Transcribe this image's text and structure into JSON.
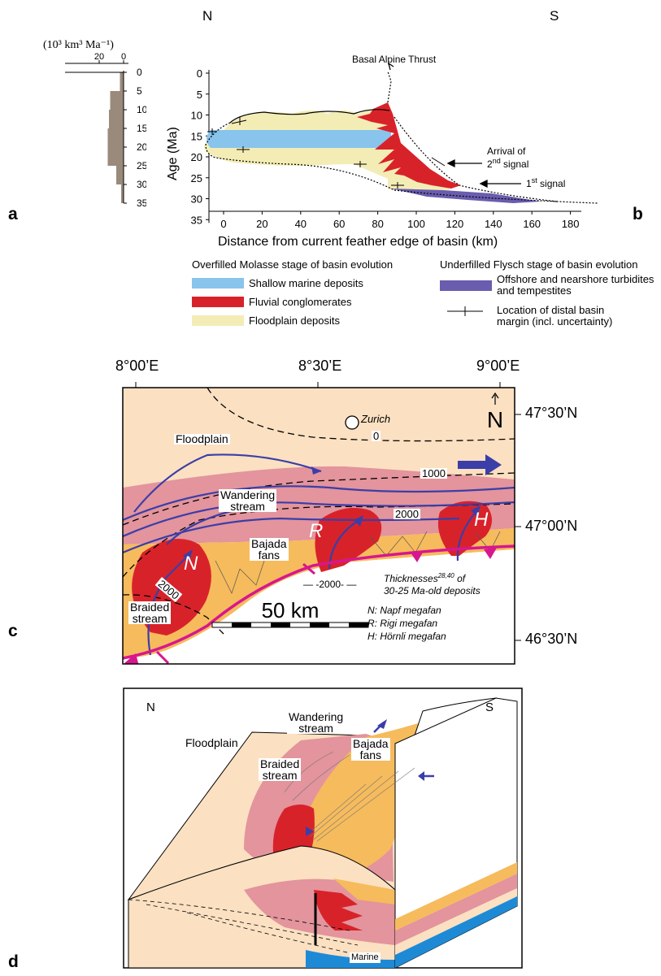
{
  "panel_letters": {
    "a": "a",
    "b": "b",
    "c": "c",
    "d": "d"
  },
  "colors": {
    "shallow_marine": "#88c4ec",
    "fluvial": "#d8222a",
    "floodplain": "#f3ecb5",
    "flysch": "#6a5cae",
    "flux_bar": "#9a8a7c",
    "map_floodplain": "#fbe0c2",
    "map_pink": "#e3949c",
    "map_orange": "#f6bb5c",
    "megafan_red": "#d8222a",
    "stream_blue": "#3b3ea8",
    "thrust_magenta": "#d8168e",
    "marine_blue": "#1e8ad6"
  },
  "panel_a": {
    "axis_label": "(10³ km³ Ma⁻¹)",
    "axis_ticks": [
      "20",
      "0"
    ],
    "age_ticks": [
      "0",
      "5",
      "10",
      "15",
      "20",
      "25",
      "30",
      "35"
    ],
    "flux_by_age_bin": [
      {
        "from": 0,
        "to": 5,
        "flux": 3
      },
      {
        "from": 5,
        "to": 10,
        "flux": 11
      },
      {
        "from": 10,
        "to": 15,
        "flux": 12
      },
      {
        "from": 15,
        "to": 20,
        "flux": 13
      },
      {
        "from": 20,
        "to": 25,
        "flux": 13
      },
      {
        "from": 25,
        "to": 30,
        "flux": 6
      },
      {
        "from": 30,
        "to": 35,
        "flux": 2
      }
    ]
  },
  "panel_b": {
    "north_label": "N",
    "south_label": "S",
    "y_axis_label": "Age (Ma)",
    "x_axis_label": "Distance from current feather edge of basin (km)",
    "y_ticks": [
      "0",
      "5",
      "10",
      "15",
      "20",
      "25",
      "30",
      "35"
    ],
    "x_ticks": [
      "0",
      "20",
      "40",
      "60",
      "80",
      "100",
      "120",
      "140",
      "160",
      "180"
    ],
    "annotation_thrust": "Basal Alpine Thrust",
    "annotation_arrival_1": "Arrival of",
    "annotation_arrival_2": "2",
    "annotation_arrival_2_sup": "nd",
    "annotation_arrival_3": "signal",
    "annotation_first_1": "1",
    "annotation_first_sup": "st",
    "annotation_first_2": " signal"
  },
  "legend": {
    "molasse_heading": "Overfilled Molasse stage of basin evolution",
    "flysch_heading": "Underfilled Flysch stage of basin evolution",
    "shallow_marine": "Shallow marine deposits",
    "fluvial": "Fluvial conglomerates",
    "floodplain": "Floodplain deposits",
    "flysch_1": "Offshore and nearshore turbidites",
    "flysch_2": "and tempestites",
    "margin_1": "Location of distal basin",
    "margin_2": "margin (incl. uncertainty)"
  },
  "panel_c": {
    "lon_labels": [
      "8°00’E",
      "8°30’E",
      "9°00’E"
    ],
    "lat_labels": [
      "47°30’N",
      "47°00’N",
      "46°30’N"
    ],
    "north_arrow": "N",
    "city": "Zurich",
    "floodplain": "Floodplain",
    "wandering_1": "Wandering",
    "wandering_2": "stream",
    "bajada_1": "Bajada",
    "bajada_2": "fans",
    "braided_1": "Braided",
    "braided_2": "stream",
    "contour_0": "0",
    "contour_1000": "1000",
    "contour_2000a": "2000",
    "contour_2000b": "2000",
    "fan_N": "N",
    "fan_R": "R",
    "fan_H": "H",
    "legend_contour": "-2000-",
    "legend_thick_1": "Thicknesses",
    "legend_thick_sup": "28,40",
    "legend_thick_2": " of",
    "legend_thick_3": "30-25 Ma-old deposits",
    "legend_N": "N: Napf megafan",
    "legend_R": "R: Rigi megafan",
    "legend_H": "H: Hörnli megafan",
    "scale": "50 km"
  },
  "panel_d": {
    "north": "N",
    "south": "S",
    "floodplain": "Floodplain",
    "wandering_1": "Wandering",
    "wandering_2": "stream",
    "braided_1": "Braided",
    "braided_2": "stream",
    "bajada_1": "Bajada",
    "bajada_2": "fans",
    "marine": "Marine"
  }
}
